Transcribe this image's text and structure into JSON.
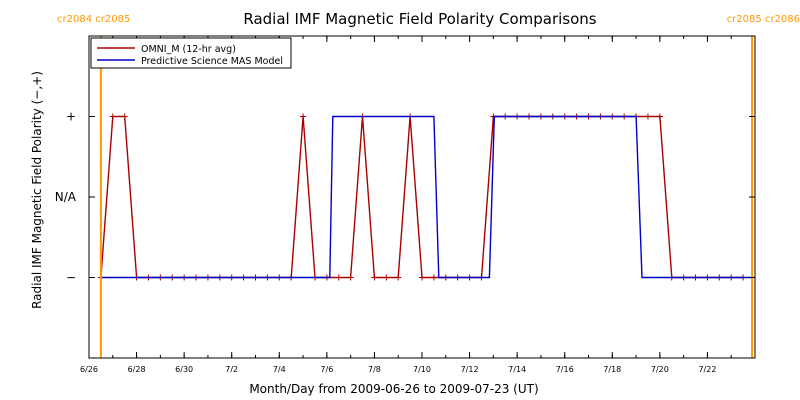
{
  "chart_data": {
    "type": "line",
    "title": "Radial IMF Magnetic Field Polarity Comparisons",
    "xlabel": "Month/Day from 2009-06-26 to 2009-07-23 (UT)",
    "ylabel": "Radial IMF Magnetic Field Polarity (−,+)",
    "xlim": [
      "2009-06-26T00:00",
      "2009-07-24T00:00"
    ],
    "ylim": [
      -2,
      2
    ],
    "x_ticks": [
      {
        "date": "2009-06-26T00:00",
        "label": "6/26"
      },
      {
        "date": "2009-06-28T00:00",
        "label": "6/28"
      },
      {
        "date": "2009-06-30T00:00",
        "label": "6/30"
      },
      {
        "date": "2009-07-02T00:00",
        "label": "7/2"
      },
      {
        "date": "2009-07-04T00:00",
        "label": "7/4"
      },
      {
        "date": "2009-07-06T00:00",
        "label": "7/6"
      },
      {
        "date": "2009-07-08T00:00",
        "label": "7/8"
      },
      {
        "date": "2009-07-10T00:00",
        "label": "7/10"
      },
      {
        "date": "2009-07-12T00:00",
        "label": "7/12"
      },
      {
        "date": "2009-07-14T00:00",
        "label": "7/14"
      },
      {
        "date": "2009-07-16T00:00",
        "label": "7/16"
      },
      {
        "date": "2009-07-18T00:00",
        "label": "7/18"
      },
      {
        "date": "2009-07-20T00:00",
        "label": "7/20"
      },
      {
        "date": "2009-07-22T00:00",
        "label": "7/22"
      }
    ],
    "y_ticks": [
      {
        "value": 1,
        "label": "+"
      },
      {
        "value": 0,
        "label": "N/A"
      },
      {
        "value": -1,
        "label": "−"
      }
    ],
    "carrington_markers": [
      {
        "date": "2009-06-26T12:00",
        "label": "cr2084 cr2085",
        "color": "#ff9900"
      },
      {
        "date": "2009-07-23T21:00",
        "label": "cr2085 cr2086",
        "color": "#ff9900"
      }
    ],
    "legend": {
      "position": "top-left"
    },
    "grid": false,
    "series": [
      {
        "name": "OMNI_M (12-hr avg)",
        "color": "#aa0000",
        "markers": true,
        "points": [
          [
            "2009-06-26T12:00",
            -1
          ],
          [
            "2009-06-27T00:00",
            1
          ],
          [
            "2009-06-27T12:00",
            1
          ],
          [
            "2009-06-28T00:00",
            -1
          ],
          [
            "2009-06-28T12:00",
            -1
          ],
          [
            "2009-06-29T00:00",
            -1
          ],
          [
            "2009-06-29T12:00",
            -1
          ],
          [
            "2009-06-30T00:00",
            -1
          ],
          [
            "2009-06-30T12:00",
            -1
          ],
          [
            "2009-07-01T00:00",
            -1
          ],
          [
            "2009-07-01T12:00",
            -1
          ],
          [
            "2009-07-02T00:00",
            -1
          ],
          [
            "2009-07-02T12:00",
            -1
          ],
          [
            "2009-07-03T00:00",
            -1
          ],
          [
            "2009-07-03T12:00",
            -1
          ],
          [
            "2009-07-04T00:00",
            -1
          ],
          [
            "2009-07-04T12:00",
            -1
          ],
          [
            "2009-07-05T00:00",
            1
          ],
          [
            "2009-07-05T12:00",
            -1
          ],
          [
            "2009-07-06T00:00",
            -1
          ],
          [
            "2009-07-06T12:00",
            -1
          ],
          [
            "2009-07-07T00:00",
            -1
          ],
          [
            "2009-07-07T12:00",
            1
          ],
          [
            "2009-07-08T00:00",
            -1
          ],
          [
            "2009-07-08T12:00",
            -1
          ],
          [
            "2009-07-09T00:00",
            -1
          ],
          [
            "2009-07-09T12:00",
            1
          ],
          [
            "2009-07-10T00:00",
            -1
          ],
          [
            "2009-07-10T12:00",
            -1
          ],
          [
            "2009-07-11T00:00",
            -1
          ],
          [
            "2009-07-11T12:00",
            -1
          ],
          [
            "2009-07-12T00:00",
            -1
          ],
          [
            "2009-07-12T12:00",
            -1
          ],
          [
            "2009-07-13T00:00",
            1
          ],
          [
            "2009-07-13T12:00",
            1
          ],
          [
            "2009-07-14T00:00",
            1
          ],
          [
            "2009-07-14T12:00",
            1
          ],
          [
            "2009-07-15T00:00",
            1
          ],
          [
            "2009-07-15T12:00",
            1
          ],
          [
            "2009-07-16T00:00",
            1
          ],
          [
            "2009-07-16T12:00",
            1
          ],
          [
            "2009-07-17T00:00",
            1
          ],
          [
            "2009-07-17T12:00",
            1
          ],
          [
            "2009-07-18T00:00",
            1
          ],
          [
            "2009-07-18T12:00",
            1
          ],
          [
            "2009-07-19T00:00",
            1
          ],
          [
            "2009-07-19T12:00",
            1
          ],
          [
            "2009-07-20T00:00",
            1
          ],
          [
            "2009-07-20T12:00",
            -1
          ],
          [
            "2009-07-21T00:00",
            -1
          ],
          [
            "2009-07-21T12:00",
            -1
          ],
          [
            "2009-07-22T00:00",
            -1
          ],
          [
            "2009-07-22T12:00",
            -1
          ],
          [
            "2009-07-23T00:00",
            -1
          ],
          [
            "2009-07-23T12:00",
            -1
          ]
        ]
      },
      {
        "name": "Predictive Science MAS Model",
        "color": "#0000cc",
        "markers": false,
        "points": [
          [
            "2009-06-26T12:00",
            -1
          ],
          [
            "2009-07-06T03:00",
            -1
          ],
          [
            "2009-07-06T06:00",
            1
          ],
          [
            "2009-07-10T12:00",
            1
          ],
          [
            "2009-07-10T17:00",
            -1
          ],
          [
            "2009-07-12T20:00",
            -1
          ],
          [
            "2009-07-13T01:00",
            1
          ],
          [
            "2009-07-19T00:00",
            1
          ],
          [
            "2009-07-19T06:00",
            -1
          ],
          [
            "2009-07-24T00:00",
            -1
          ]
        ]
      }
    ]
  }
}
